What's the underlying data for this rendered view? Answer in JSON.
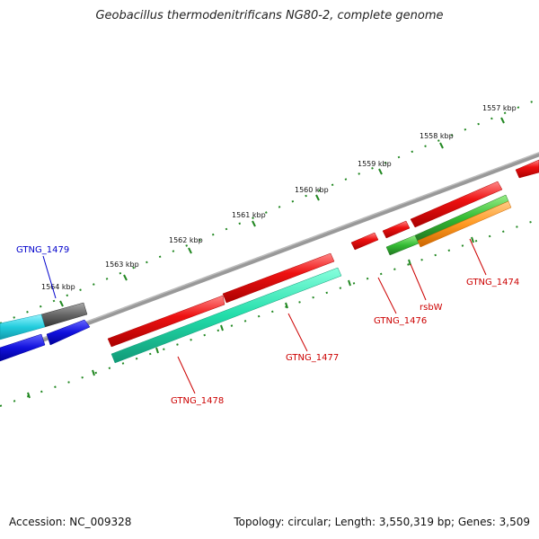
{
  "title": "Geobacillus thermodenitrificans NG80-2, complete genome",
  "footer": {
    "accession": "Accession: NC_009328",
    "summary": "Topology: circular; Length: 3,550,319 bp; Genes: 3,509"
  },
  "ruler": {
    "labels": [
      "1557 kbp",
      "1558 kbp",
      "1559 kbp",
      "1560 kbp",
      "1561 kbp",
      "1562 kbp",
      "1563 kbp",
      "1564 kbp"
    ]
  },
  "gene_labels": [
    {
      "name": "GTNG_1479",
      "color": "#0000cc"
    },
    {
      "name": "GTNG_1474",
      "color": "#cc0000"
    },
    {
      "name": "rsbW",
      "color": "#cc0000"
    },
    {
      "name": "GTNG_1476",
      "color": "#cc0000"
    },
    {
      "name": "GTNG_1477",
      "color": "#cc0000"
    },
    {
      "name": "GTNG_1478",
      "color": "#cc0000"
    }
  ],
  "colors": {
    "cds_forward": "#ee1111",
    "cds_reverse": "#22ddaa",
    "rrna_green": "#33bb33",
    "orange": "#ff9922",
    "cyan": "#22ccdd",
    "blue": "#1111dd",
    "gray": "#666666",
    "backbone": "#808080",
    "ticks": "#228822"
  }
}
